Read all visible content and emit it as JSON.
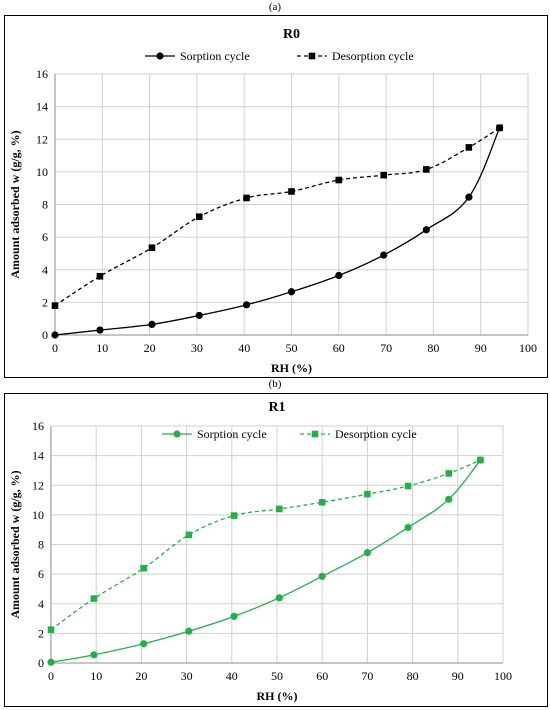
{
  "panels": [
    {
      "letter": "(a)"
    },
    {
      "letter": "(b)"
    }
  ],
  "chart_data": [
    {
      "type": "line",
      "title": "R0",
      "xlabel": "RH (%)",
      "ylabel": "Amount adsorbed w (g/g, %)",
      "xlim": [
        0,
        100
      ],
      "ylim": [
        0,
        16
      ],
      "xticks": [
        0,
        10,
        20,
        30,
        40,
        50,
        60,
        70,
        80,
        90,
        100
      ],
      "yticks": [
        0,
        2,
        4,
        6,
        8,
        10,
        12,
        14,
        16
      ],
      "grid": true,
      "legend": "top",
      "color": "#000000",
      "series": [
        {
          "name": "Sorption cycle",
          "style": "solid",
          "marker": "circle",
          "x": [
            0,
            9.5,
            20.5,
            30.5,
            40.5,
            50,
            60,
            69.5,
            78.5,
            87.5,
            94
          ],
          "y": [
            0.0,
            0.3,
            0.65,
            1.2,
            1.85,
            2.65,
            3.65,
            4.9,
            6.45,
            8.45,
            12.7
          ]
        },
        {
          "name": "Desorption cycle",
          "style": "dashed",
          "marker": "square",
          "x": [
            0,
            9.5,
            20.5,
            30.5,
            40.5,
            50,
            60,
            69.5,
            78.5,
            87.5,
            94
          ],
          "y": [
            1.8,
            3.6,
            5.35,
            7.25,
            8.4,
            8.8,
            9.5,
            9.8,
            10.15,
            11.5,
            12.7
          ]
        }
      ]
    },
    {
      "type": "line",
      "title": "R1",
      "xlabel": "RH (%)",
      "ylabel": "Amount adsorbed w (g/g, %)",
      "xlim": [
        0,
        100
      ],
      "ylim": [
        0,
        16
      ],
      "xticks": [
        0,
        10,
        20,
        30,
        40,
        50,
        60,
        70,
        80,
        90,
        100
      ],
      "yticks": [
        0,
        2,
        4,
        6,
        8,
        10,
        12,
        14,
        16
      ],
      "grid": true,
      "legend": "top",
      "color": "#22b04a",
      "series": [
        {
          "name": "Sorption cycle",
          "style": "solid",
          "marker": "circle",
          "x": [
            0,
            9.5,
            20.5,
            30.5,
            40.5,
            50.5,
            60,
            70,
            79,
            88,
            95
          ],
          "y": [
            0.05,
            0.55,
            1.3,
            2.15,
            3.15,
            4.4,
            5.85,
            7.45,
            9.15,
            11.05,
            13.7
          ]
        },
        {
          "name": "Desorption cycle",
          "style": "dashed",
          "marker": "square",
          "x": [
            0,
            9.5,
            20.5,
            30.5,
            40.5,
            50.5,
            60,
            70,
            79,
            88,
            95
          ],
          "y": [
            2.25,
            4.35,
            6.4,
            8.65,
            9.95,
            10.4,
            10.85,
            11.4,
            11.95,
            12.8,
            13.7
          ]
        }
      ]
    }
  ]
}
